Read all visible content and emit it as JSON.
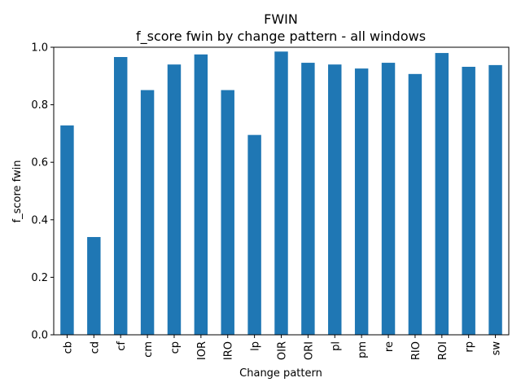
{
  "chart_data": {
    "type": "bar",
    "title": "FWIN",
    "subtitle": "f_score fwin by change pattern - all windows",
    "xlabel": "Change pattern",
    "ylabel": "f_score fwin",
    "categories": [
      "cb",
      "cd",
      "cf",
      "cm",
      "cp",
      "IOR",
      "IRO",
      "lp",
      "OIR",
      "ORI",
      "pl",
      "pm",
      "re",
      "RIO",
      "ROI",
      "rp",
      "sw"
    ],
    "values": [
      0.728,
      0.34,
      0.966,
      0.851,
      0.94,
      0.975,
      0.851,
      0.695,
      0.985,
      0.946,
      0.94,
      0.926,
      0.946,
      0.907,
      0.98,
      0.932,
      0.938
    ],
    "ylim": [
      0,
      1.0
    ],
    "yticks": [
      "0.0",
      "0.2",
      "0.4",
      "0.6",
      "0.8",
      "1.0"
    ],
    "bar_color": "#1f77b4",
    "grid": false,
    "legend": false
  }
}
